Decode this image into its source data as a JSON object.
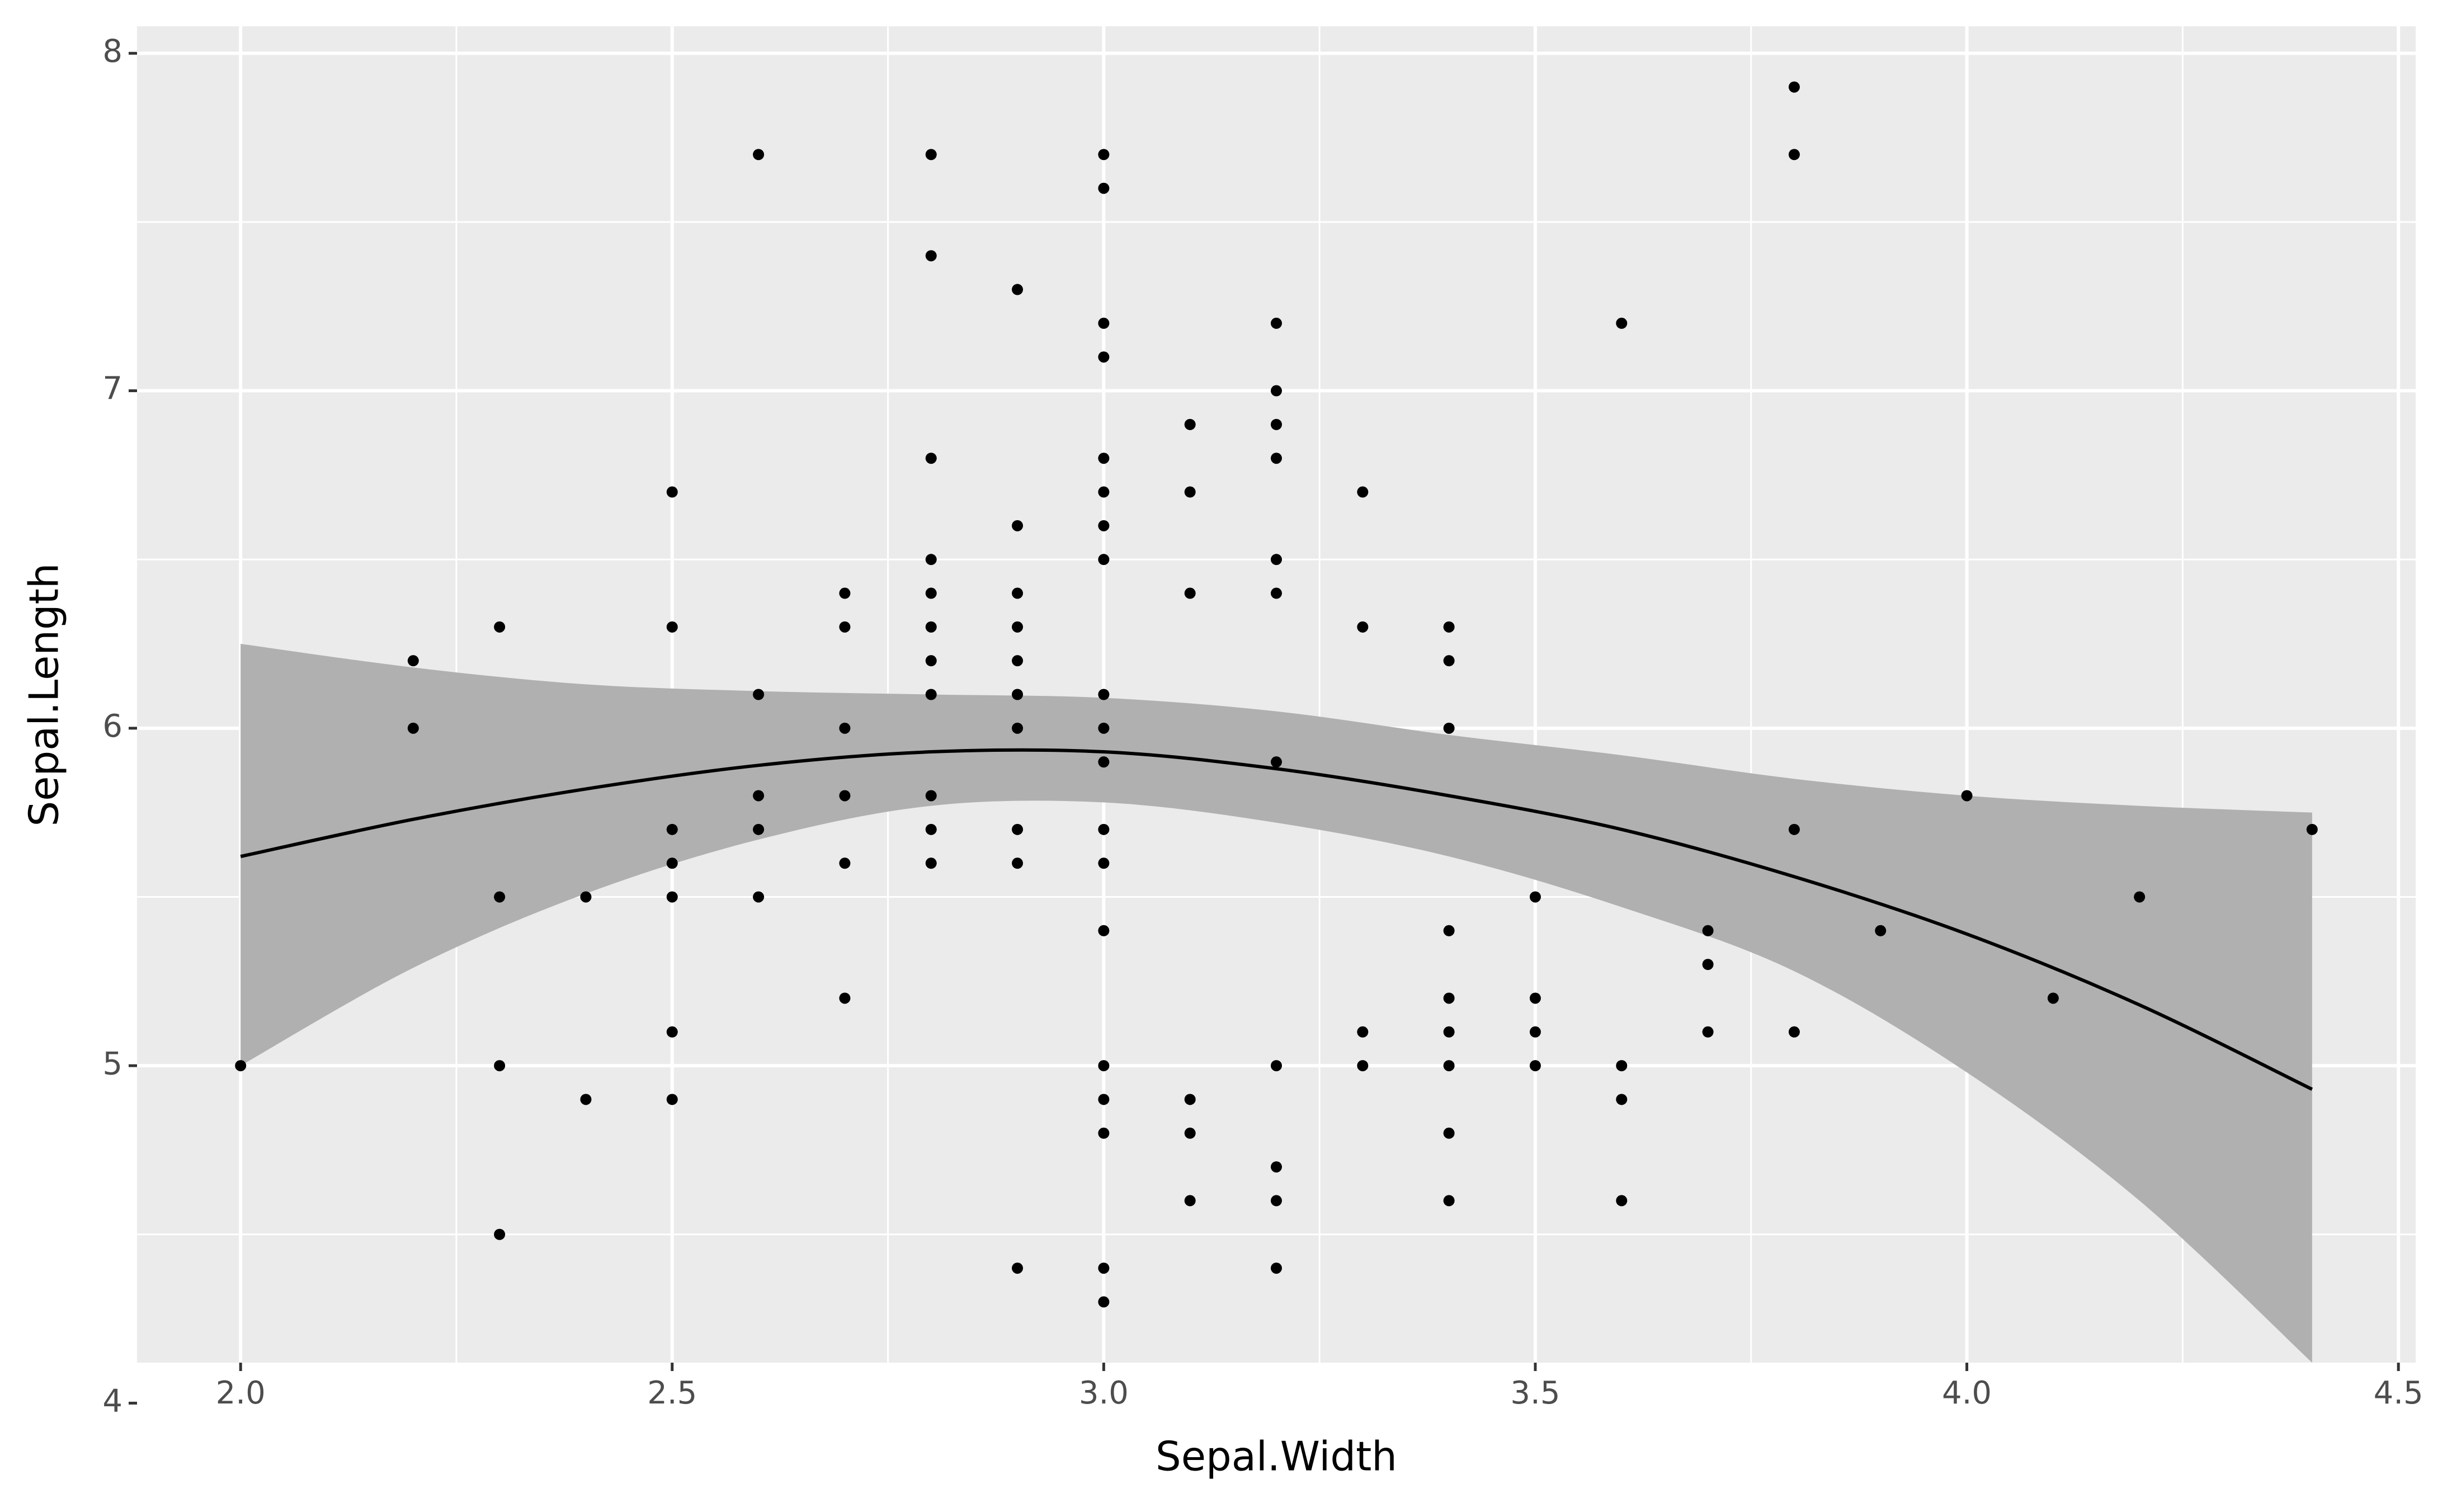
{
  "chart_data": {
    "type": "scatter",
    "xlabel": "Sepal.Width",
    "ylabel": "Sepal.Length",
    "x": [
      2.0,
      2.2,
      2.2,
      2.3,
      2.3,
      2.3,
      2.3,
      2.4,
      2.4,
      2.5,
      2.5,
      2.5,
      2.5,
      2.5,
      2.5,
      2.5,
      2.6,
      2.6,
      2.6,
      2.6,
      2.6,
      2.7,
      2.7,
      2.7,
      2.7,
      2.7,
      2.7,
      2.8,
      2.8,
      2.8,
      2.8,
      2.8,
      2.8,
      2.8,
      2.8,
      2.8,
      2.8,
      2.8,
      2.9,
      2.9,
      2.9,
      2.9,
      2.9,
      2.9,
      2.9,
      2.9,
      2.9,
      2.9,
      3.0,
      3.0,
      3.0,
      3.0,
      3.0,
      3.0,
      3.0,
      3.0,
      3.0,
      3.0,
      3.0,
      3.0,
      3.0,
      3.0,
      3.0,
      3.0,
      3.0,
      3.0,
      3.0,
      3.1,
      3.1,
      3.1,
      3.1,
      3.1,
      3.1,
      3.2,
      3.2,
      3.2,
      3.2,
      3.2,
      3.2,
      3.2,
      3.2,
      3.2,
      3.2,
      3.2,
      3.3,
      3.3,
      3.3,
      3.3,
      3.4,
      3.4,
      3.4,
      3.4,
      3.4,
      3.4,
      3.4,
      3.4,
      3.4,
      3.5,
      3.5,
      3.5,
      3.5,
      3.6,
      3.6,
      3.6,
      3.6,
      3.7,
      3.7,
      3.7,
      3.8,
      3.8,
      3.8,
      3.8,
      3.9,
      4.0,
      4.1,
      4.2,
      4.4
    ],
    "values": [
      5.0,
      6.2,
      6.0,
      6.3,
      5.5,
      5.0,
      4.5,
      5.5,
      4.9,
      6.7,
      6.3,
      5.7,
      5.6,
      5.5,
      5.1,
      4.9,
      7.7,
      6.1,
      5.8,
      5.7,
      5.5,
      6.4,
      6.3,
      6.0,
      5.8,
      5.6,
      5.2,
      7.7,
      7.4,
      6.8,
      6.5,
      6.4,
      6.3,
      6.2,
      6.1,
      5.8,
      5.7,
      5.6,
      7.3,
      6.6,
      6.4,
      6.3,
      6.2,
      6.1,
      6.0,
      5.7,
      5.6,
      4.4,
      7.7,
      7.6,
      7.2,
      7.1,
      6.8,
      6.7,
      6.6,
      6.5,
      6.1,
      6.0,
      5.9,
      5.7,
      5.6,
      5.4,
      5.0,
      4.9,
      4.8,
      4.4,
      4.3,
      6.9,
      6.7,
      6.4,
      4.9,
      4.8,
      4.6,
      7.2,
      7.0,
      6.9,
      6.8,
      6.5,
      6.4,
      5.9,
      5.0,
      4.7,
      4.6,
      4.4,
      6.7,
      6.3,
      5.1,
      5.0,
      6.3,
      6.2,
      6.0,
      5.4,
      5.2,
      5.1,
      5.0,
      4.8,
      4.6,
      5.5,
      5.2,
      5.1,
      5.0,
      7.2,
      5.0,
      4.9,
      4.6,
      5.4,
      5.3,
      5.1,
      7.9,
      7.7,
      5.7,
      5.1,
      5.4,
      5.8,
      5.2,
      5.5,
      5.7
    ],
    "color": "#000000",
    "smooth": {
      "color": "#000000",
      "band_color": "#b0b0b0",
      "x": [
        2.0,
        2.2,
        2.4,
        2.6,
        2.8,
        3.0,
        3.2,
        3.4,
        3.6,
        3.8,
        4.0,
        4.2,
        4.4
      ],
      "values": [
        5.62,
        5.73,
        5.82,
        5.89,
        5.93,
        5.93,
        5.88,
        5.8,
        5.7,
        5.56,
        5.39,
        5.18,
        4.93
      ],
      "lower": [
        5.0,
        5.29,
        5.51,
        5.67,
        5.77,
        5.78,
        5.72,
        5.62,
        5.47,
        5.28,
        4.98,
        4.6,
        4.12
      ],
      "upper": [
        6.25,
        6.18,
        6.13,
        6.11,
        6.1,
        6.09,
        6.05,
        5.98,
        5.92,
        5.85,
        5.8,
        5.77,
        5.75
      ]
    },
    "xlim": [
      1.88,
      4.52
    ],
    "ylim": [
      4.12,
      8.08
    ],
    "xticks": [
      {
        "value": 2.0,
        "label": "2.0"
      },
      {
        "value": 2.5,
        "label": "2.5"
      },
      {
        "value": 3.0,
        "label": "3.0"
      },
      {
        "value": 3.5,
        "label": "3.5"
      },
      {
        "value": 4.0,
        "label": "4.0"
      },
      {
        "value": 4.5,
        "label": "4.5"
      }
    ],
    "xminor": [
      2.25,
      2.75,
      3.25,
      3.75,
      4.25
    ],
    "yticks": [
      4,
      5,
      6,
      7,
      8
    ],
    "yminor": [
      4.5,
      5.5,
      6.5,
      7.5
    ],
    "grid": true
  }
}
